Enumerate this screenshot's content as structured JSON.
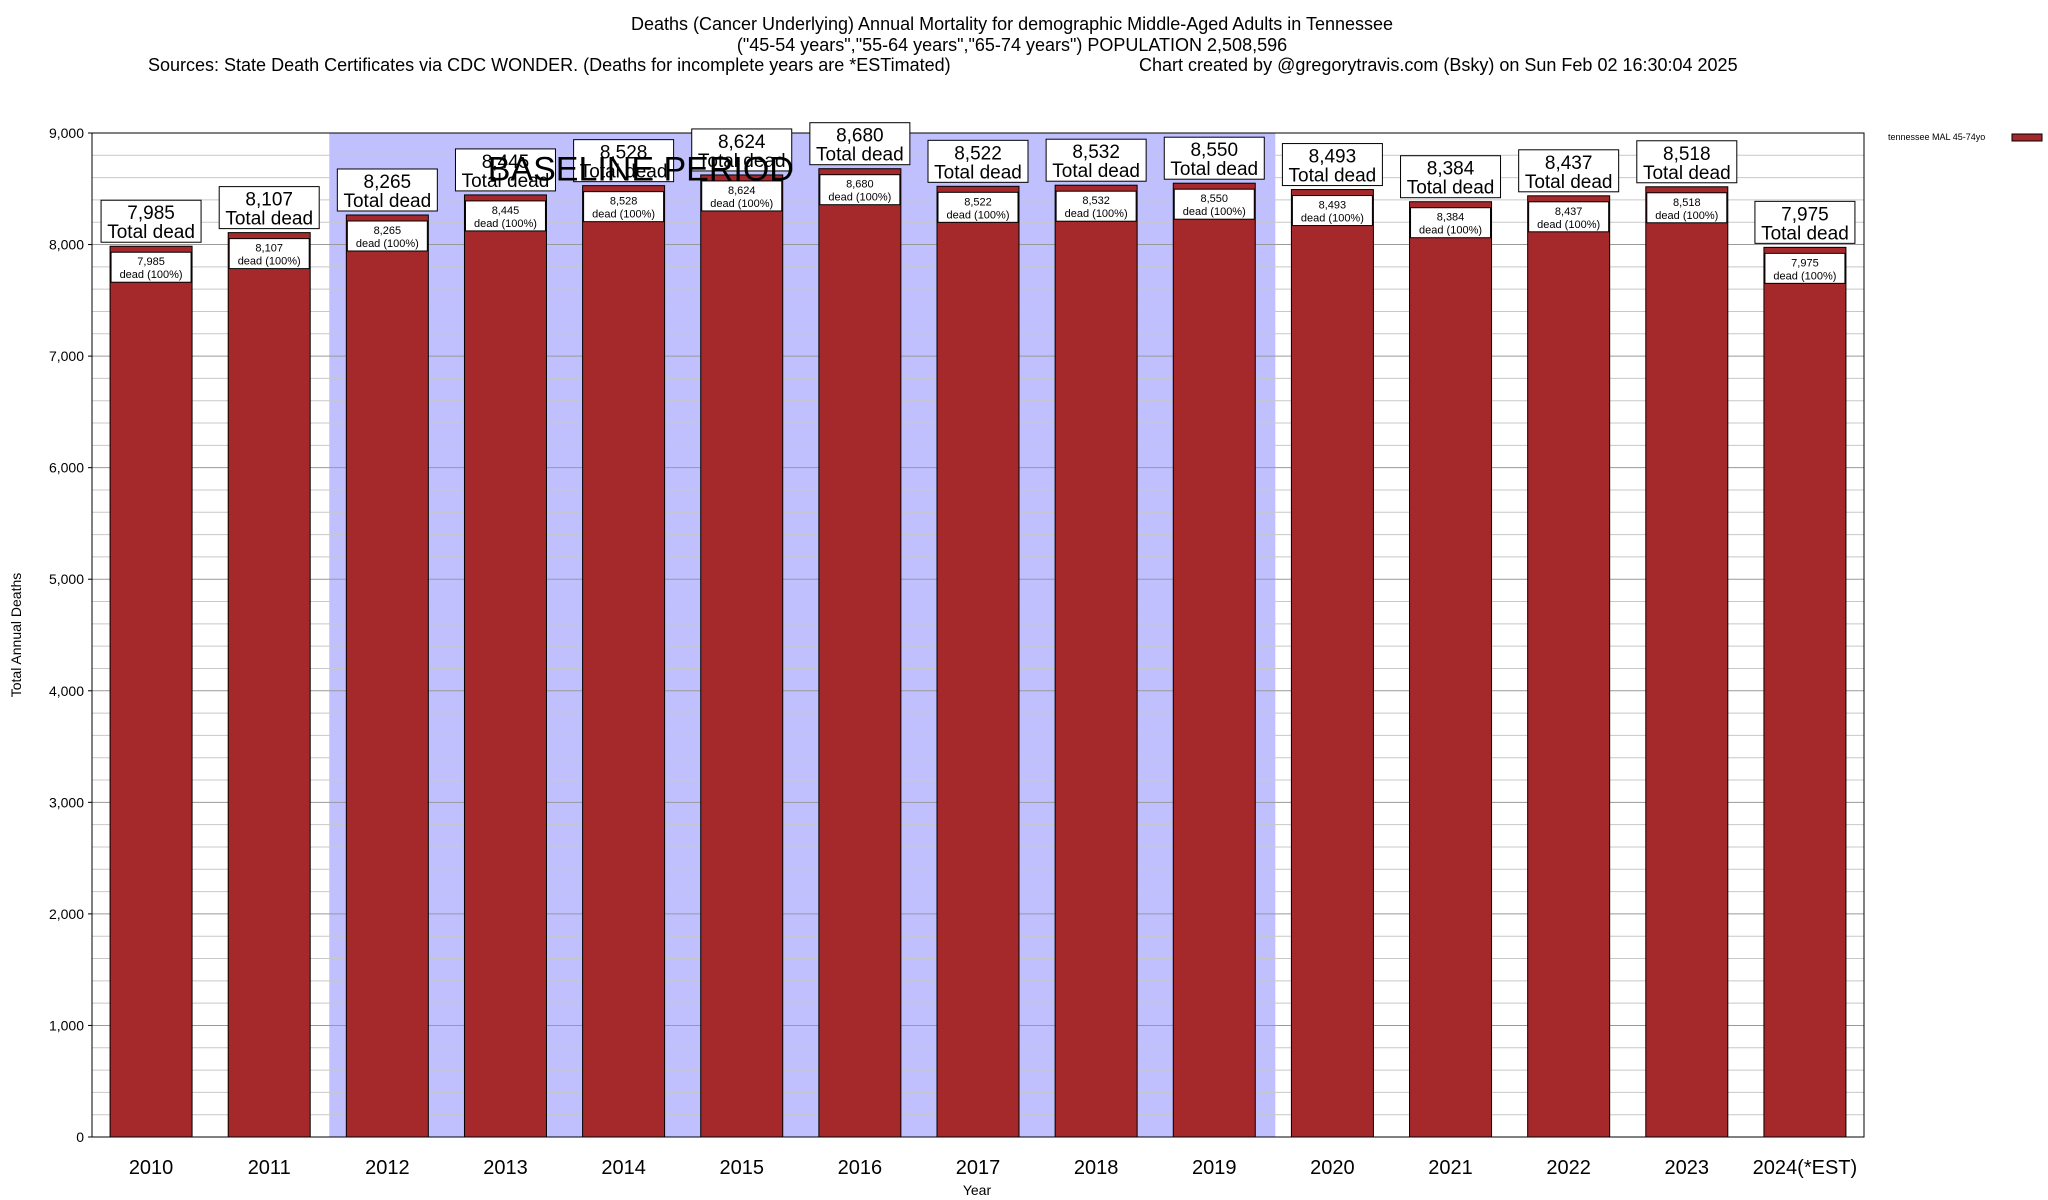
{
  "title": {
    "line1": "Deaths (Cancer Underlying) Annual Mortality for demographic Middle-Aged Adults in Tennessee",
    "line2": "(\"45-54 years\",\"55-64 years\",\"65-74 years\") POPULATION 2,508,596",
    "line3a": "Sources: State Death Certificates via CDC WONDER. (Deaths for incomplete years are *ESTimated)",
    "line3b": "Chart created by @gregorytravis.com (Bsky) on Sun Feb 02 16:30:04 2025"
  },
  "chart_data": {
    "type": "bar",
    "categories": [
      "2010",
      "2011",
      "2012",
      "2013",
      "2014",
      "2015",
      "2016",
      "2017",
      "2018",
      "2019",
      "2020",
      "2021",
      "2022",
      "2023",
      "2024(*EST)"
    ],
    "series": [
      {
        "name": "tennessee MAL 45-74yo",
        "values": [
          7985,
          8107,
          8265,
          8445,
          8528,
          8624,
          8680,
          8522,
          8532,
          8550,
          8493,
          8384,
          8437,
          8518,
          7975
        ],
        "color": "#a5282b"
      }
    ],
    "value_labels": [
      "7,985",
      "8,107",
      "8,265",
      "8,445",
      "8,528",
      "8,624",
      "8,680",
      "8,522",
      "8,532",
      "8,550",
      "8,493",
      "8,384",
      "8,437",
      "8,518",
      "7,975"
    ],
    "total_label_suffix": "Total dead",
    "inner_label_suffix": "dead (100%)",
    "xlabel": "Year",
    "ylabel": "Total Annual Deaths",
    "ylim": [
      0,
      9000
    ],
    "yticks": [
      0,
      1000,
      2000,
      3000,
      4000,
      5000,
      6000,
      7000,
      8000,
      9000
    ],
    "ytick_labels": [
      "0",
      "1,000",
      "2,000",
      "3,000",
      "4,000",
      "5,000",
      "6,000",
      "7,000",
      "8,000",
      "9,000"
    ],
    "minor_grid_step": 200,
    "grid": true,
    "legend_position": "top-right",
    "baseline_period": {
      "label": "BASELINE PERIOD",
      "start": "2012",
      "end": "2019",
      "color": "#c0c0ff"
    }
  }
}
